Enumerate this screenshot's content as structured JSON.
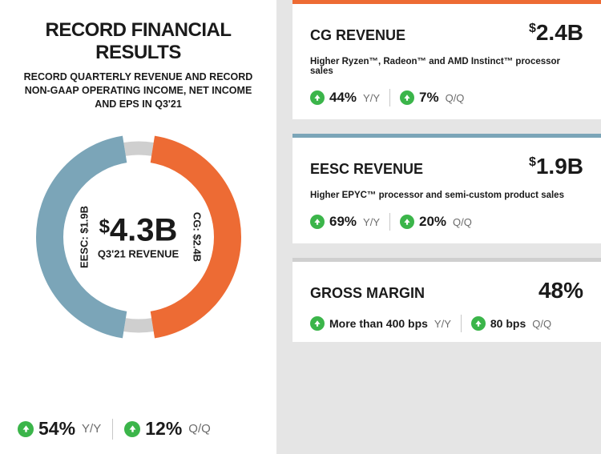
{
  "colors": {
    "orange": "#ed6b34",
    "steel": "#7ba5b8",
    "green": "#3bb54a",
    "grey_ring": "#cfcfcf",
    "text": "#1a1a1a"
  },
  "left": {
    "title": "RECORD FINANCIAL RESULTS",
    "subtitle": "RECORD QUARTERLY REVENUE AND RECORD NON-GAAP OPERATING INCOME, NET INCOME AND EPS IN Q3'21",
    "donut": {
      "total_value": "4.3B",
      "total_label": "Q3'21 REVENUE",
      "segments": [
        {
          "key": "cg",
          "label": "CG: $2.4B",
          "value": 2.4,
          "color": "#ed6b34"
        },
        {
          "key": "eesc",
          "label": "EESC: $1.9B",
          "value": 1.9,
          "color": "#7ba5b8"
        }
      ],
      "gap_deg": 18,
      "ring_bg": "#cfcfcf",
      "stroke_width": 34
    },
    "stats": [
      {
        "pct": "54%",
        "period": "Y/Y",
        "badge": "#3bb54a"
      },
      {
        "pct": "12%",
        "period": "Q/Q",
        "badge": "#3bb54a"
      }
    ]
  },
  "cards": [
    {
      "border_color": "#ed6b34",
      "title": "CG REVENUE",
      "value": "2.4B",
      "dollar": true,
      "desc": "Higher Ryzen™, Radeon™ and AMD Instinct™ processor sales",
      "stats": [
        {
          "pct": "44%",
          "period": "Y/Y",
          "badge": "#3bb54a"
        },
        {
          "pct": "7%",
          "period": "Q/Q",
          "badge": "#3bb54a"
        }
      ]
    },
    {
      "border_color": "#7ba5b8",
      "title": "EESC REVENUE",
      "value": "1.9B",
      "dollar": true,
      "desc": "Higher EPYC™ processor and semi-custom product sales",
      "stats": [
        {
          "pct": "69%",
          "period": "Y/Y",
          "badge": "#3bb54a"
        },
        {
          "pct": "20%",
          "period": "Q/Q",
          "badge": "#3bb54a"
        }
      ]
    },
    {
      "border_color": "#cfcfcf",
      "title": "GROSS MARGIN",
      "value": "48%",
      "dollar": false,
      "stats": [
        {
          "text_pre": "More than ",
          "text_bold": "400 bps",
          "period": "Y/Y",
          "badge": "#3bb54a"
        },
        {
          "text_bold": "80 bps",
          "period": "Q/Q",
          "badge": "#3bb54a"
        }
      ]
    }
  ]
}
